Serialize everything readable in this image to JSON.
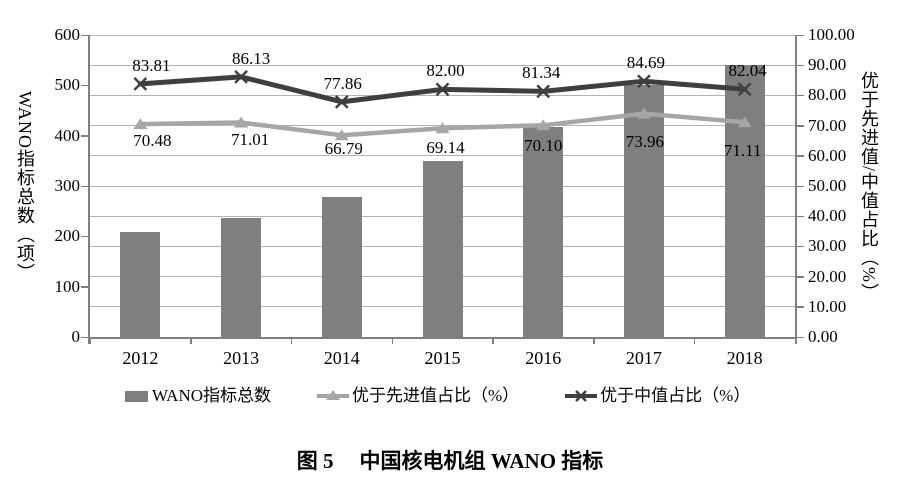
{
  "caption": {
    "number": "图 5",
    "text": "中国核电机组 WANO 指标"
  },
  "chart_data": {
    "type": "bar+line",
    "categories": [
      "2012",
      "2013",
      "2014",
      "2015",
      "2016",
      "2017",
      "2018"
    ],
    "left_axis": {
      "label": "WANO指标总数（项）",
      "min": 0,
      "max": 600,
      "step": 100,
      "ticks": [
        "600",
        "500",
        "400",
        "300",
        "200",
        "100",
        "0"
      ]
    },
    "right_axis": {
      "label": "优于先进值/中值占比（%）",
      "min": 0,
      "max": 100,
      "step": 10,
      "ticks": [
        "100.00",
        "90.00",
        "80.00",
        "70.00",
        "60.00",
        "50.00",
        "40.00",
        "30.00",
        "20.00",
        "10.00",
        "0.00"
      ]
    },
    "grid": "horizontal gridlines at every 10% of right axis",
    "series": [
      {
        "name": "WANO指标总数",
        "type": "bar",
        "axis": "left",
        "color": "#7f7f7f",
        "values": [
          209,
          236,
          279,
          349,
          417,
          500,
          540
        ]
      },
      {
        "name": "优于先进值占比（%）",
        "type": "line",
        "marker": "triangle",
        "axis": "right",
        "color": "#a6a6a6",
        "values": [
          70.48,
          71.01,
          66.79,
          69.14,
          70.1,
          73.96,
          71.11
        ],
        "labels": [
          "70.48",
          "71.01",
          "66.79",
          "69.14",
          "70.10",
          "73.96",
          "71.11"
        ]
      },
      {
        "name": "优于中值占比（%）",
        "type": "line",
        "marker": "x",
        "axis": "right",
        "color": "#3f3f3f",
        "values": [
          83.81,
          86.13,
          77.86,
          82.0,
          81.34,
          84.69,
          82.04
        ],
        "labels": [
          "83.81",
          "86.13",
          "77.86",
          "82.00",
          "81.34",
          "84.69",
          "82.04"
        ]
      }
    ],
    "legend": {
      "position": "bottom",
      "items": [
        {
          "label": "WANO指标总数",
          "marker": "square",
          "color": "#7f7f7f"
        },
        {
          "label": "优于先进值占比（%）",
          "marker": "triangle-line",
          "color": "#a6a6a6"
        },
        {
          "label": "优于中值占比（%）",
          "marker": "x-line",
          "color": "#3f3f3f"
        }
      ]
    },
    "colors": {
      "grid": "#b3b3b3",
      "axis": "#7f7f7f",
      "text": "#000000"
    }
  }
}
